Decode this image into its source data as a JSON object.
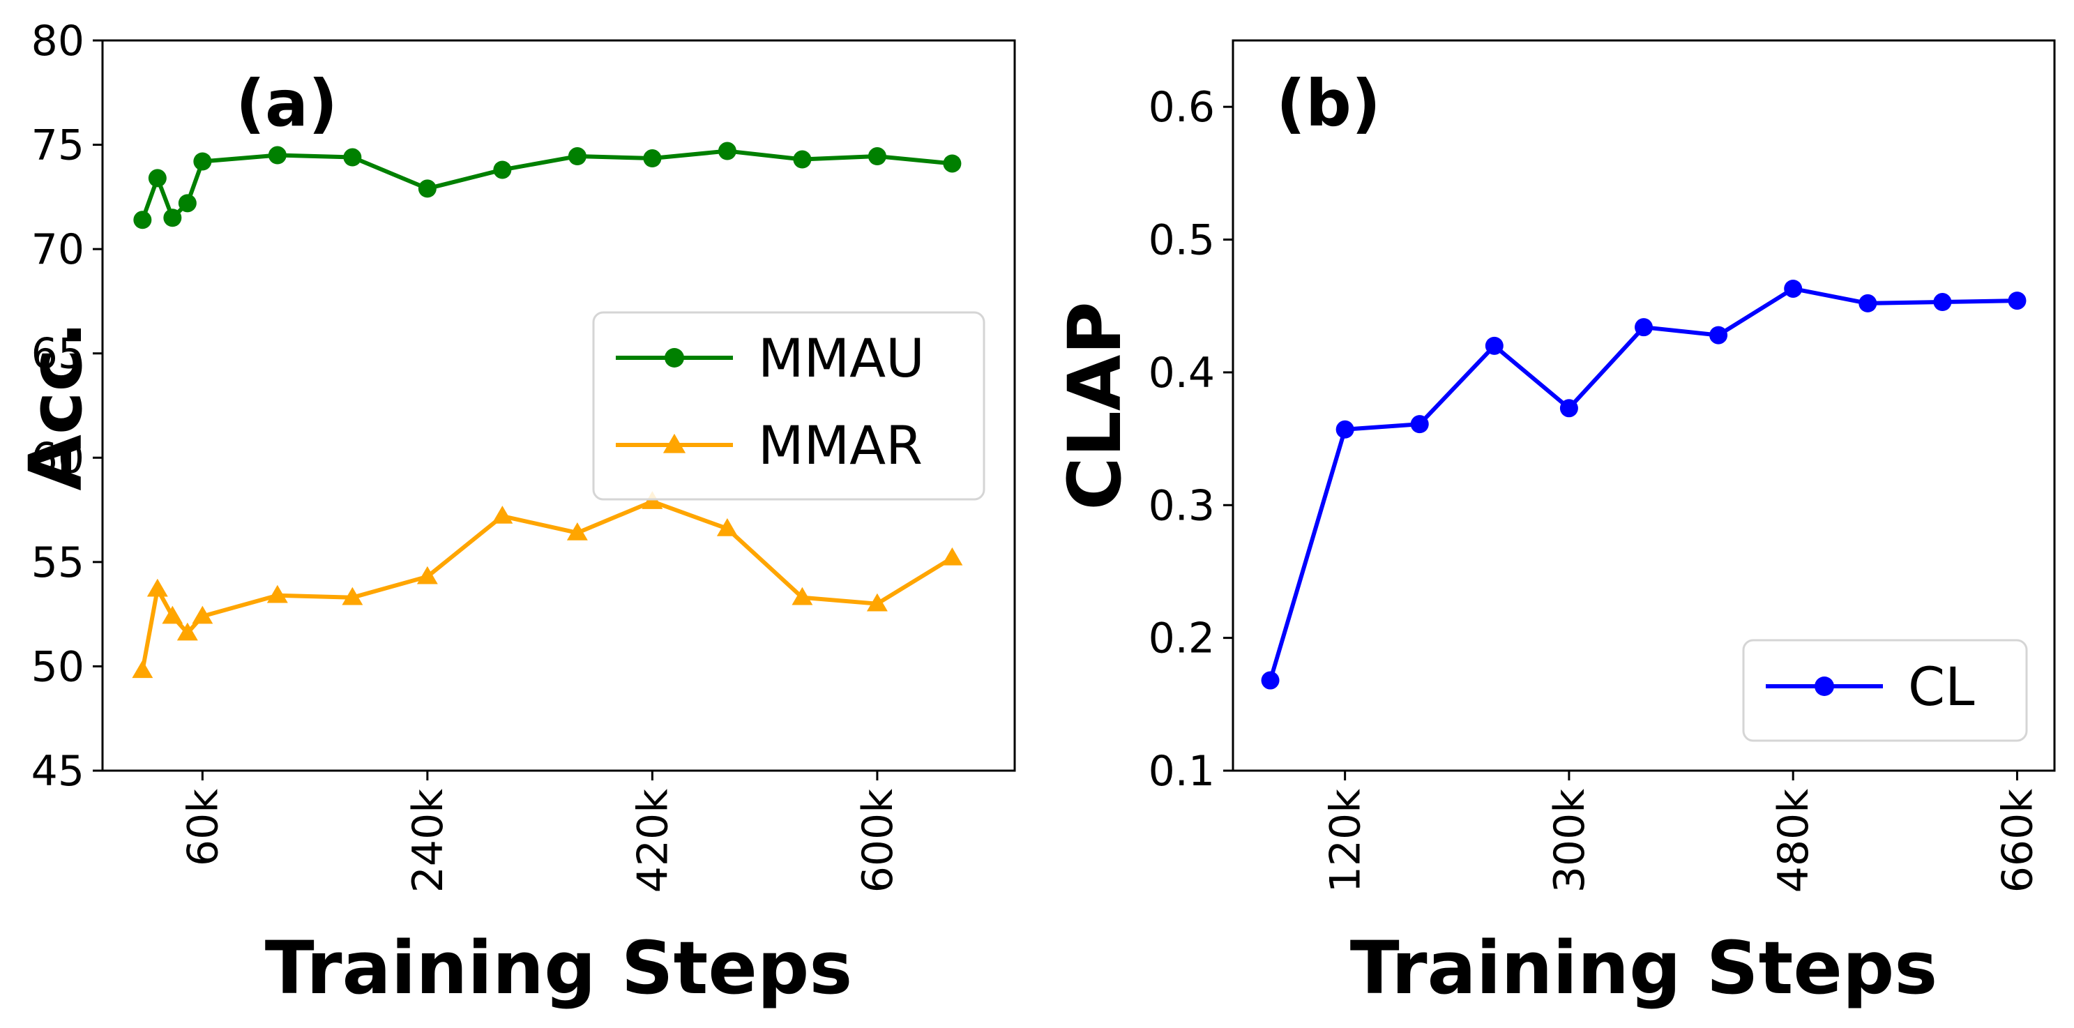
{
  "chart_data": [
    {
      "type": "line",
      "panel_label": "(a)",
      "xlabel": "Training Steps",
      "ylabel": "Acc.",
      "xlim": [
        -20000,
        710000
      ],
      "ylim": [
        45,
        80
      ],
      "xticks": [
        60000,
        240000,
        420000,
        600000
      ],
      "xtick_labels": [
        "60k",
        "240k",
        "420k",
        "600k"
      ],
      "yticks": [
        45,
        50,
        55,
        60,
        65,
        70,
        75,
        80
      ],
      "ytick_labels": [
        "45",
        "50",
        "55",
        "60",
        "65",
        "70",
        "75",
        "80"
      ],
      "grid": false,
      "legend_position": "center-right",
      "series": [
        {
          "name": "MMAU",
          "color": "#008000",
          "marker": "circle",
          "x": [
            12000,
            24000,
            36000,
            48000,
            60000,
            120000,
            180000,
            240000,
            300000,
            360000,
            420000,
            480000,
            540000,
            600000,
            660000
          ],
          "y": [
            71.4,
            73.4,
            71.5,
            72.2,
            74.2,
            74.5,
            74.4,
            72.9,
            73.8,
            74.45,
            74.35,
            74.7,
            74.3,
            74.45,
            74.1
          ]
        },
        {
          "name": "MMAR",
          "color": "#FFA500",
          "marker": "triangle",
          "x": [
            12000,
            24000,
            36000,
            48000,
            60000,
            120000,
            180000,
            240000,
            300000,
            360000,
            420000,
            480000,
            540000,
            600000,
            660000
          ],
          "y": [
            49.8,
            53.7,
            52.4,
            51.6,
            52.4,
            53.4,
            53.3,
            54.3,
            57.2,
            56.4,
            57.9,
            56.6,
            53.3,
            53.0,
            55.2
          ]
        }
      ]
    },
    {
      "type": "line",
      "panel_label": "(b)",
      "xlabel": "Training Steps",
      "ylabel": "CLAP",
      "xlim": [
        30000,
        690000
      ],
      "ylim": [
        0.1,
        0.65
      ],
      "xticks": [
        120000,
        300000,
        480000,
        660000
      ],
      "xtick_labels": [
        "120k",
        "300k",
        "480k",
        "660k"
      ],
      "yticks": [
        0.1,
        0.2,
        0.3,
        0.4,
        0.5,
        0.6
      ],
      "ytick_labels": [
        "0.1",
        "0.2",
        "0.3",
        "0.4",
        "0.5",
        "0.6"
      ],
      "grid": false,
      "legend_position": "lower-right",
      "series": [
        {
          "name": "CL",
          "color": "#0000FF",
          "marker": "circle",
          "x": [
            60000,
            120000,
            180000,
            240000,
            300000,
            360000,
            420000,
            480000,
            540000,
            600000,
            660000
          ],
          "y": [
            0.168,
            0.357,
            0.361,
            0.42,
            0.373,
            0.434,
            0.428,
            0.463,
            0.452,
            0.453,
            0.454
          ]
        }
      ]
    }
  ]
}
